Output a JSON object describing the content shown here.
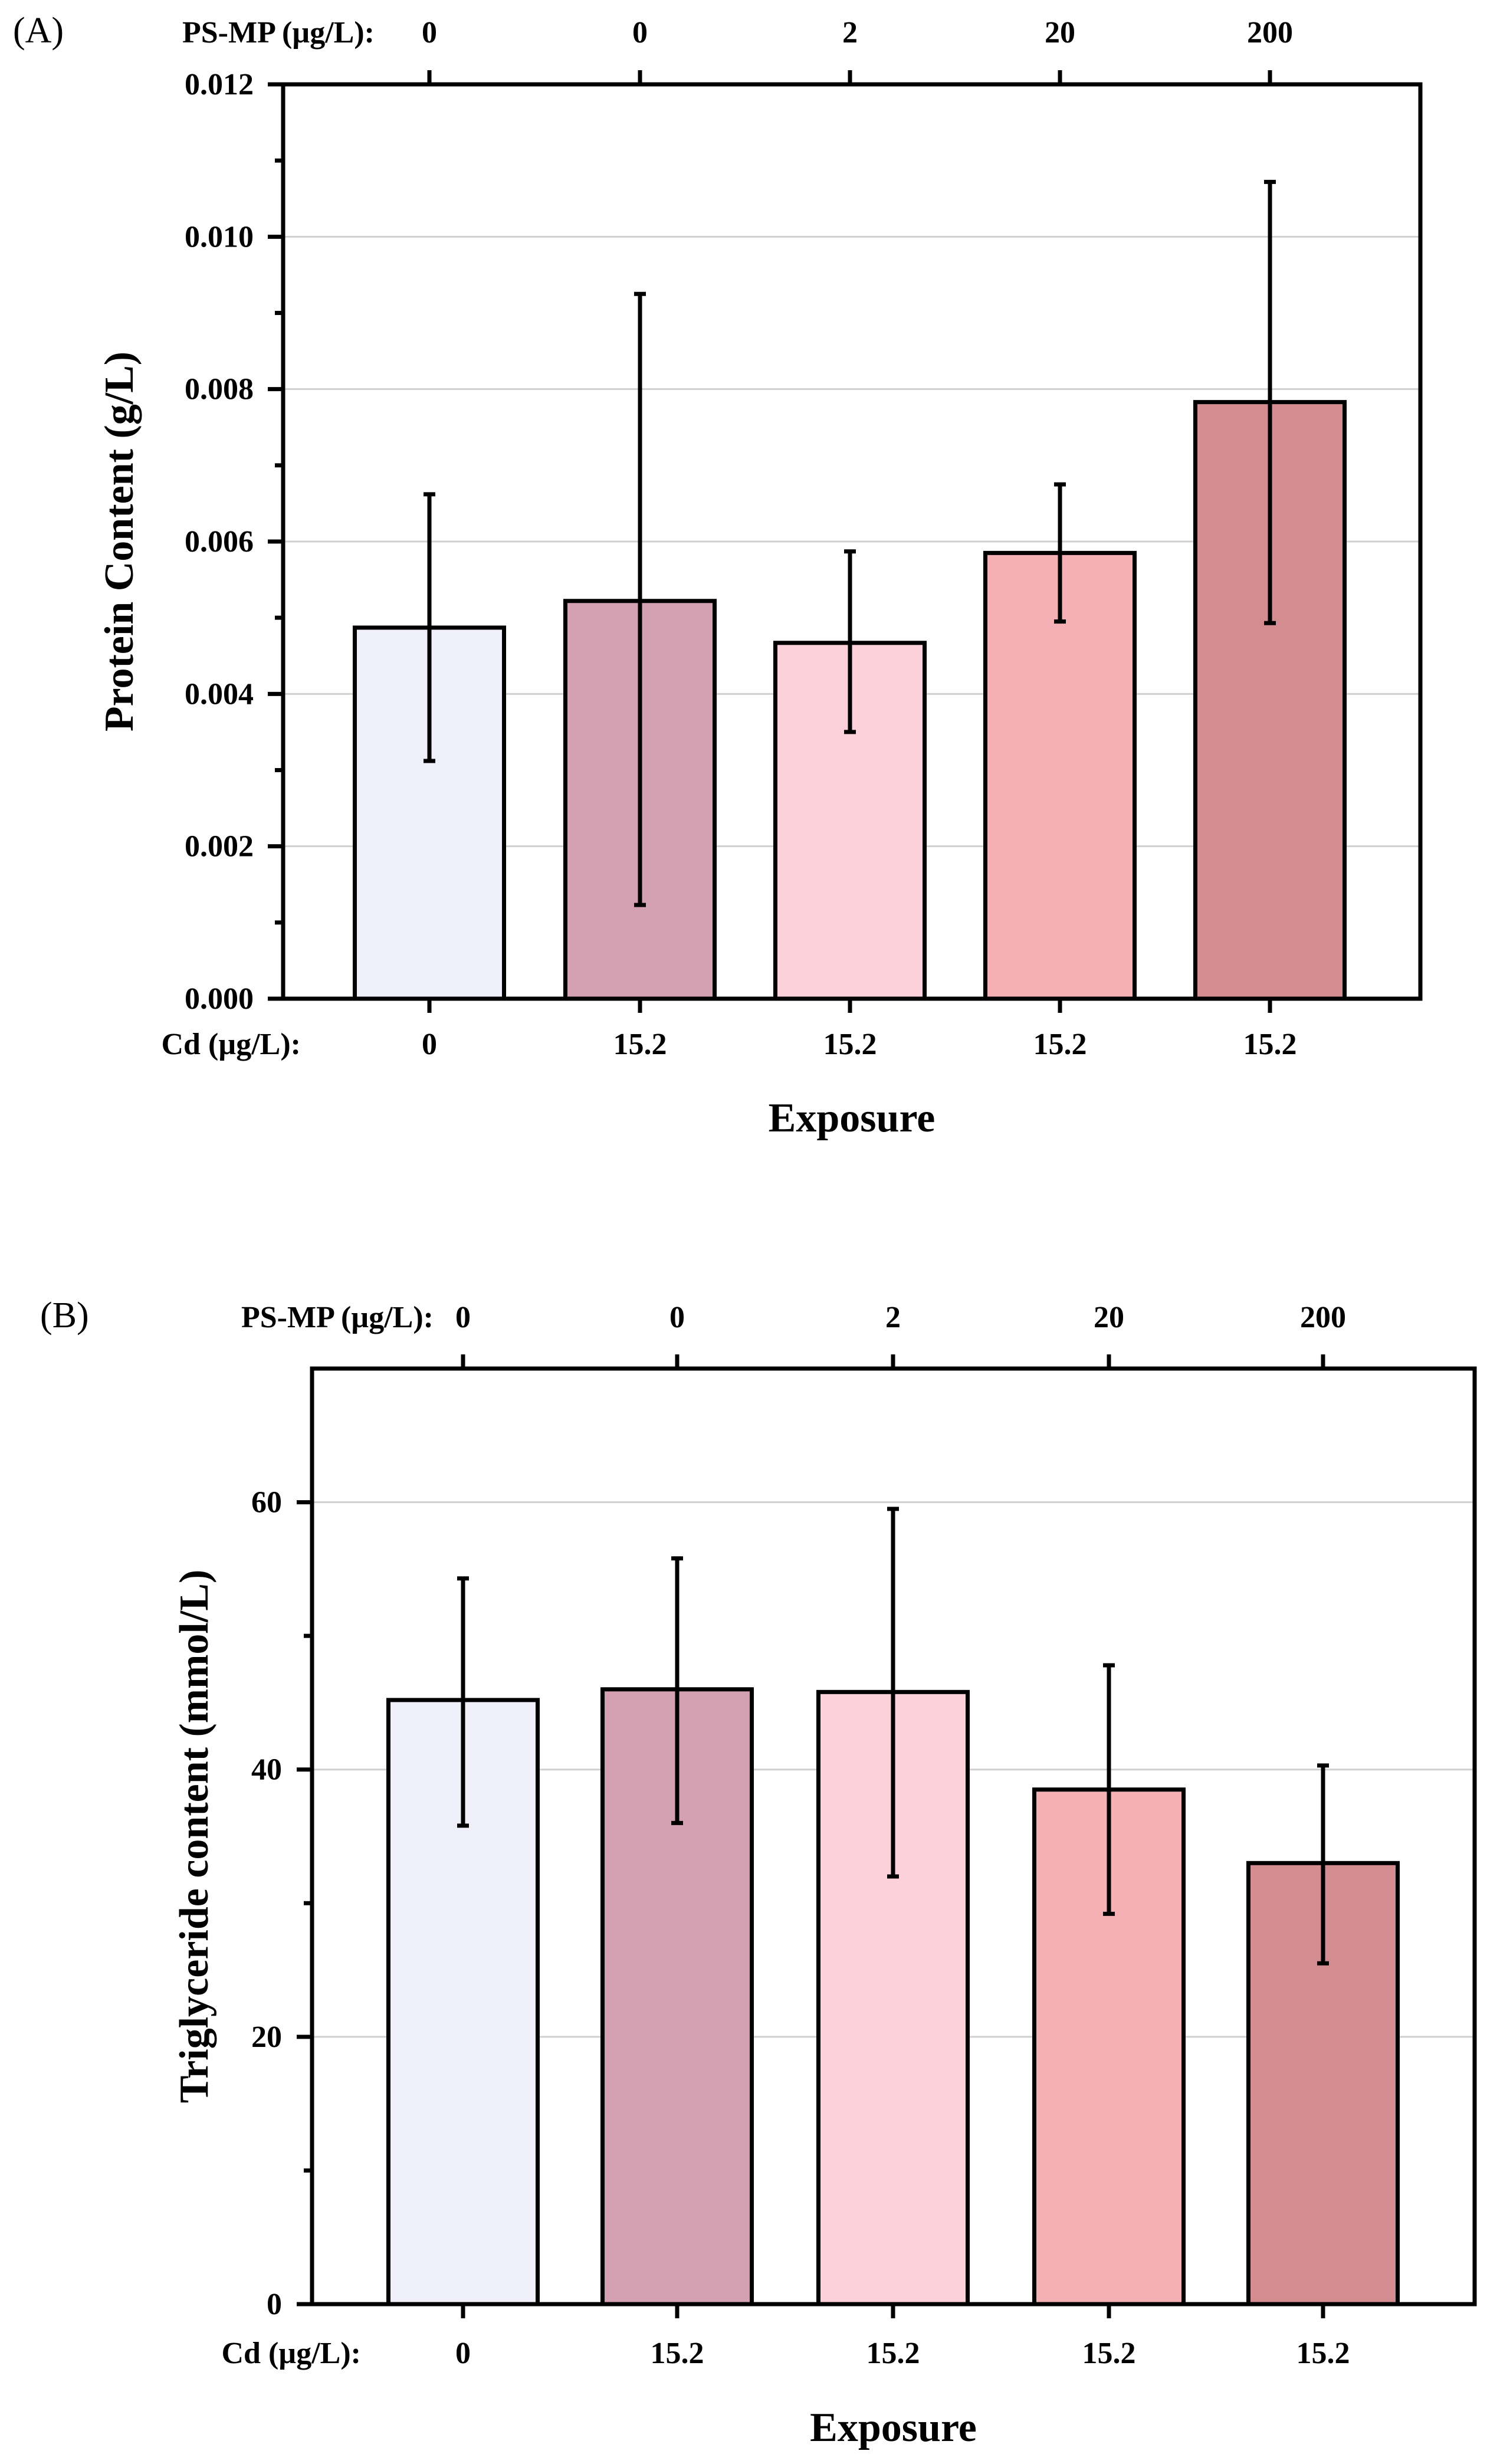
{
  "chart_data": [
    {
      "type": "bar",
      "panel_label": "(A)",
      "top_axis_label": "PS-MP (µg/L):",
      "top_categories": [
        "0",
        "0",
        "2",
        "20",
        "200"
      ],
      "bottom_axis_label": "Cd (µg/L):",
      "categories": [
        "0",
        "15.2",
        "15.2",
        "15.2",
        "15.2"
      ],
      "values": [
        0.00487,
        0.00522,
        0.00467,
        0.00585,
        0.00783
      ],
      "error_upper": [
        0.00662,
        0.00925,
        0.00587,
        0.00675,
        0.01072
      ],
      "error_lower": [
        0.00312,
        0.00123,
        0.0035,
        0.00495,
        0.00493
      ],
      "xlabel": "Exposure",
      "ylabel": "Protein Content (g/L)",
      "ylim": [
        0,
        0.012
      ],
      "yticks": [
        0,
        0.002,
        0.004,
        0.006,
        0.008,
        0.01,
        0.012
      ],
      "ytick_labels": [
        "0.000",
        "0.002",
        "0.004",
        "0.006",
        "0.008",
        "0.010",
        "0.012"
      ],
      "grid": "horizontal",
      "colors": [
        "#efeff9",
        "#d3a1b2",
        "#fdd1d9",
        "#f4b0b5",
        "#d38d90"
      ]
    },
    {
      "type": "bar",
      "panel_label": "(B)",
      "top_axis_label": "PS-MP (µg/L):",
      "top_categories": [
        "0",
        "0",
        "2",
        "20",
        "200"
      ],
      "bottom_axis_label": "Cd (µg/L):",
      "categories": [
        "0",
        "15.2",
        "15.2",
        "15.2",
        "15.2"
      ],
      "values": [
        45.2,
        46.0,
        45.8,
        38.5,
        33.0
      ],
      "error_upper": [
        54.3,
        55.8,
        59.5,
        47.8,
        40.3
      ],
      "error_lower": [
        35.8,
        36.0,
        32.0,
        29.2,
        25.5
      ],
      "xlabel": "Exposure",
      "ylabel": "Triglyceride content (mmol/L)",
      "ylim": [
        0,
        70
      ],
      "yticks": [
        0,
        20,
        40,
        60
      ],
      "ytick_labels": [
        "0",
        "20",
        "40",
        "60"
      ],
      "grid": "horizontal",
      "colors": [
        "#efeff9",
        "#d3a1b2",
        "#fdd1d9",
        "#f4b0b5",
        "#d38d90"
      ]
    }
  ]
}
